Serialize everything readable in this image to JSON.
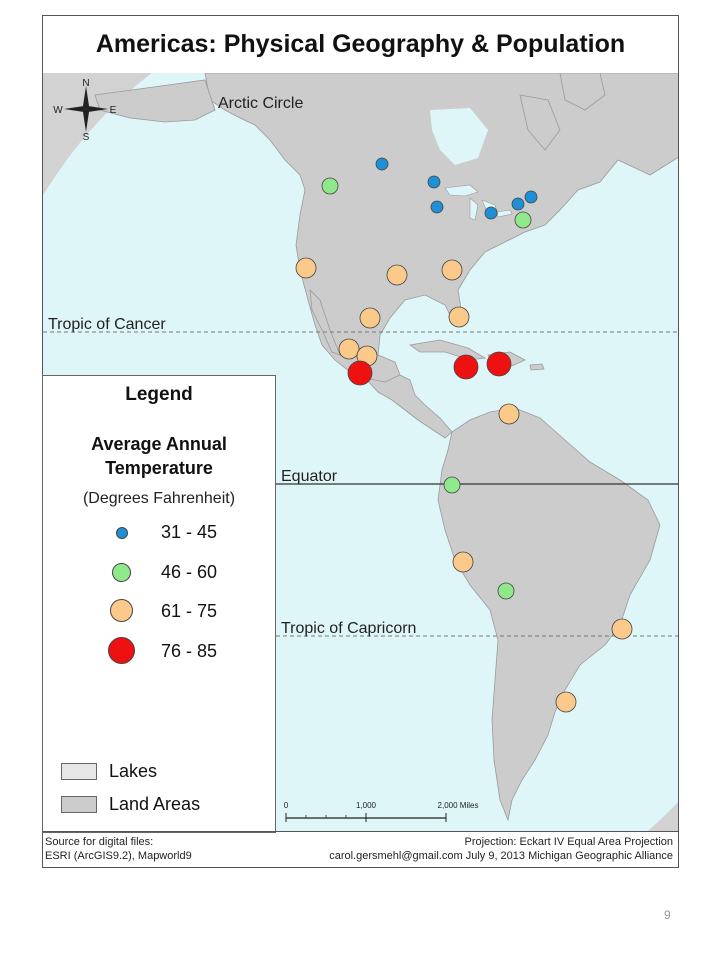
{
  "title": "Americas: Physical Geography & Population",
  "colors": {
    "ocean": "#dff6f8",
    "land": "#cccccc",
    "land_stroke": "#9a9a9a",
    "cold": "#1f8fd6",
    "cool": "#8fe88a",
    "warm": "#fbc98a",
    "hot": "#ee1111"
  },
  "compass": {
    "n": "N",
    "s": "S",
    "e": "E",
    "w": "W"
  },
  "lines": {
    "arctic": "Arctic Circle",
    "cancer": "Tropic of Cancer",
    "equator": "Equator",
    "capricorn": "Tropic of Capricorn"
  },
  "legend": {
    "title": "Legend",
    "subtitle_line1": "Average Annual",
    "subtitle_line2": "Temperature",
    "unit": "(Degrees Fahrenheit)",
    "classes": [
      {
        "label": "31 - 45",
        "color": "cold"
      },
      {
        "label": "46 - 60",
        "color": "cool"
      },
      {
        "label": "61 - 75",
        "color": "warm"
      },
      {
        "label": "76 - 85",
        "color": "hot"
      }
    ],
    "lakes": "Lakes",
    "land_areas": "Land Areas"
  },
  "scale": {
    "t0": "0",
    "t1": "1,000",
    "t2": "2,000 Miles"
  },
  "footer": {
    "source_line1": "Source for digital files:",
    "source_line2": "ESRI (ArcGIS9.2), Mapworld9",
    "projection": "Projection:  Eckart IV Equal Area Projection",
    "credit": "carol.gersmehl@gmail.com  July 9, 2013  Michigan Geographic Alliance"
  },
  "page_number": "9"
}
